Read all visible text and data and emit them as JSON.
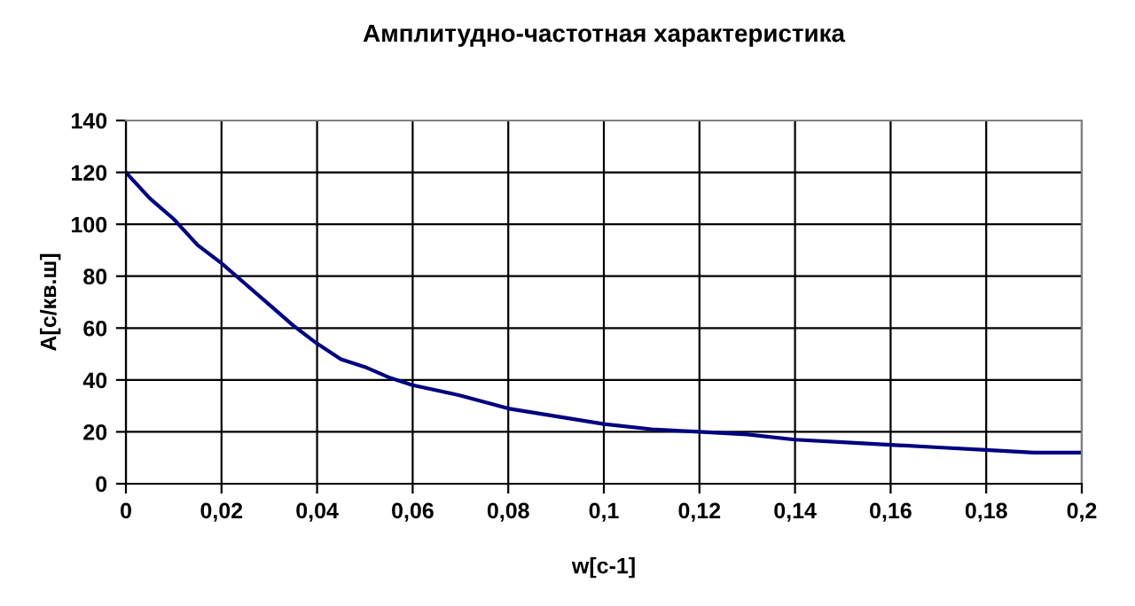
{
  "chart_data": {
    "type": "line",
    "title": "Амплитудно-частотная характеристика",
    "xlabel": "w[c-1]",
    "ylabel": "A[c/кв.ш]",
    "x": [
      0,
      0.005,
      0.01,
      0.015,
      0.02,
      0.025,
      0.03,
      0.035,
      0.04,
      0.045,
      0.05,
      0.055,
      0.06,
      0.07,
      0.08,
      0.09,
      0.1,
      0.11,
      0.12,
      0.13,
      0.14,
      0.15,
      0.16,
      0.17,
      0.18,
      0.19,
      0.2
    ],
    "series": [
      {
        "color": "#000080",
        "values": [
          120,
          110,
          102,
          92,
          85,
          77,
          69,
          61,
          54,
          48,
          45,
          41,
          38,
          34,
          29,
          26,
          23,
          21,
          20,
          19,
          17,
          16,
          15,
          14,
          13,
          12,
          12
        ]
      }
    ],
    "xlim": [
      0,
      0.2
    ],
    "ylim": [
      0,
      140
    ],
    "xticks": [
      0,
      {
        "value": 0.02,
        "label": "0,02"
      },
      {
        "value": 0.04,
        "label": "0,04"
      },
      {
        "value": 0.06,
        "label": "0,06"
      },
      {
        "value": 0.08,
        "label": "0,08"
      },
      {
        "value": 0.1,
        "label": "0,1"
      },
      {
        "value": 0.12,
        "label": "0,12"
      },
      {
        "value": 0.14,
        "label": "0,14"
      },
      {
        "value": 0.16,
        "label": "0,16"
      },
      {
        "value": 0.18,
        "label": "0,18"
      },
      {
        "value": 0.2,
        "label": "0,2"
      }
    ],
    "yticks": [
      0,
      20,
      40,
      60,
      80,
      100,
      120,
      140
    ],
    "grid": true,
    "marker": "none",
    "line_style": "solid"
  }
}
